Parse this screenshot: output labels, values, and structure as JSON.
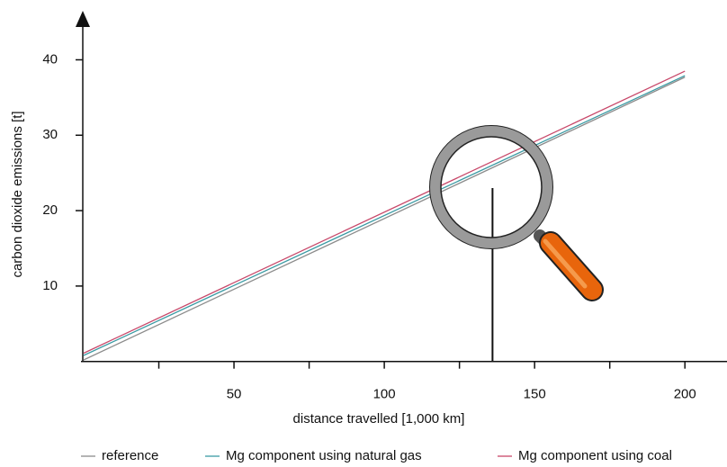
{
  "chart_data": {
    "type": "line",
    "x_label": "distance travelled [1,000 km]",
    "y_label": "carbon dioxide emissions [t]",
    "x": [
      0,
      200
    ],
    "series": [
      {
        "name": "reference",
        "color": "#8c8c8c",
        "values": [
          0.2,
          37.7
        ]
      },
      {
        "name": "Mg component using natural gas",
        "color": "#3a9aa3",
        "values": [
          0.8,
          37.9
        ]
      },
      {
        "name": "Mg component using coal",
        "color": "#c8486a",
        "values": [
          1.1,
          38.5
        ]
      }
    ],
    "xlim": [
      0,
      214
    ],
    "ylim": [
      0,
      46.5
    ],
    "xticks": [
      50,
      100,
      150,
      200
    ],
    "xminorticks": [
      25,
      75,
      125,
      175
    ],
    "yticks": [
      10,
      20,
      30,
      40
    ],
    "marker": {
      "x": 136,
      "y": 23
    },
    "legend": "bottom"
  }
}
